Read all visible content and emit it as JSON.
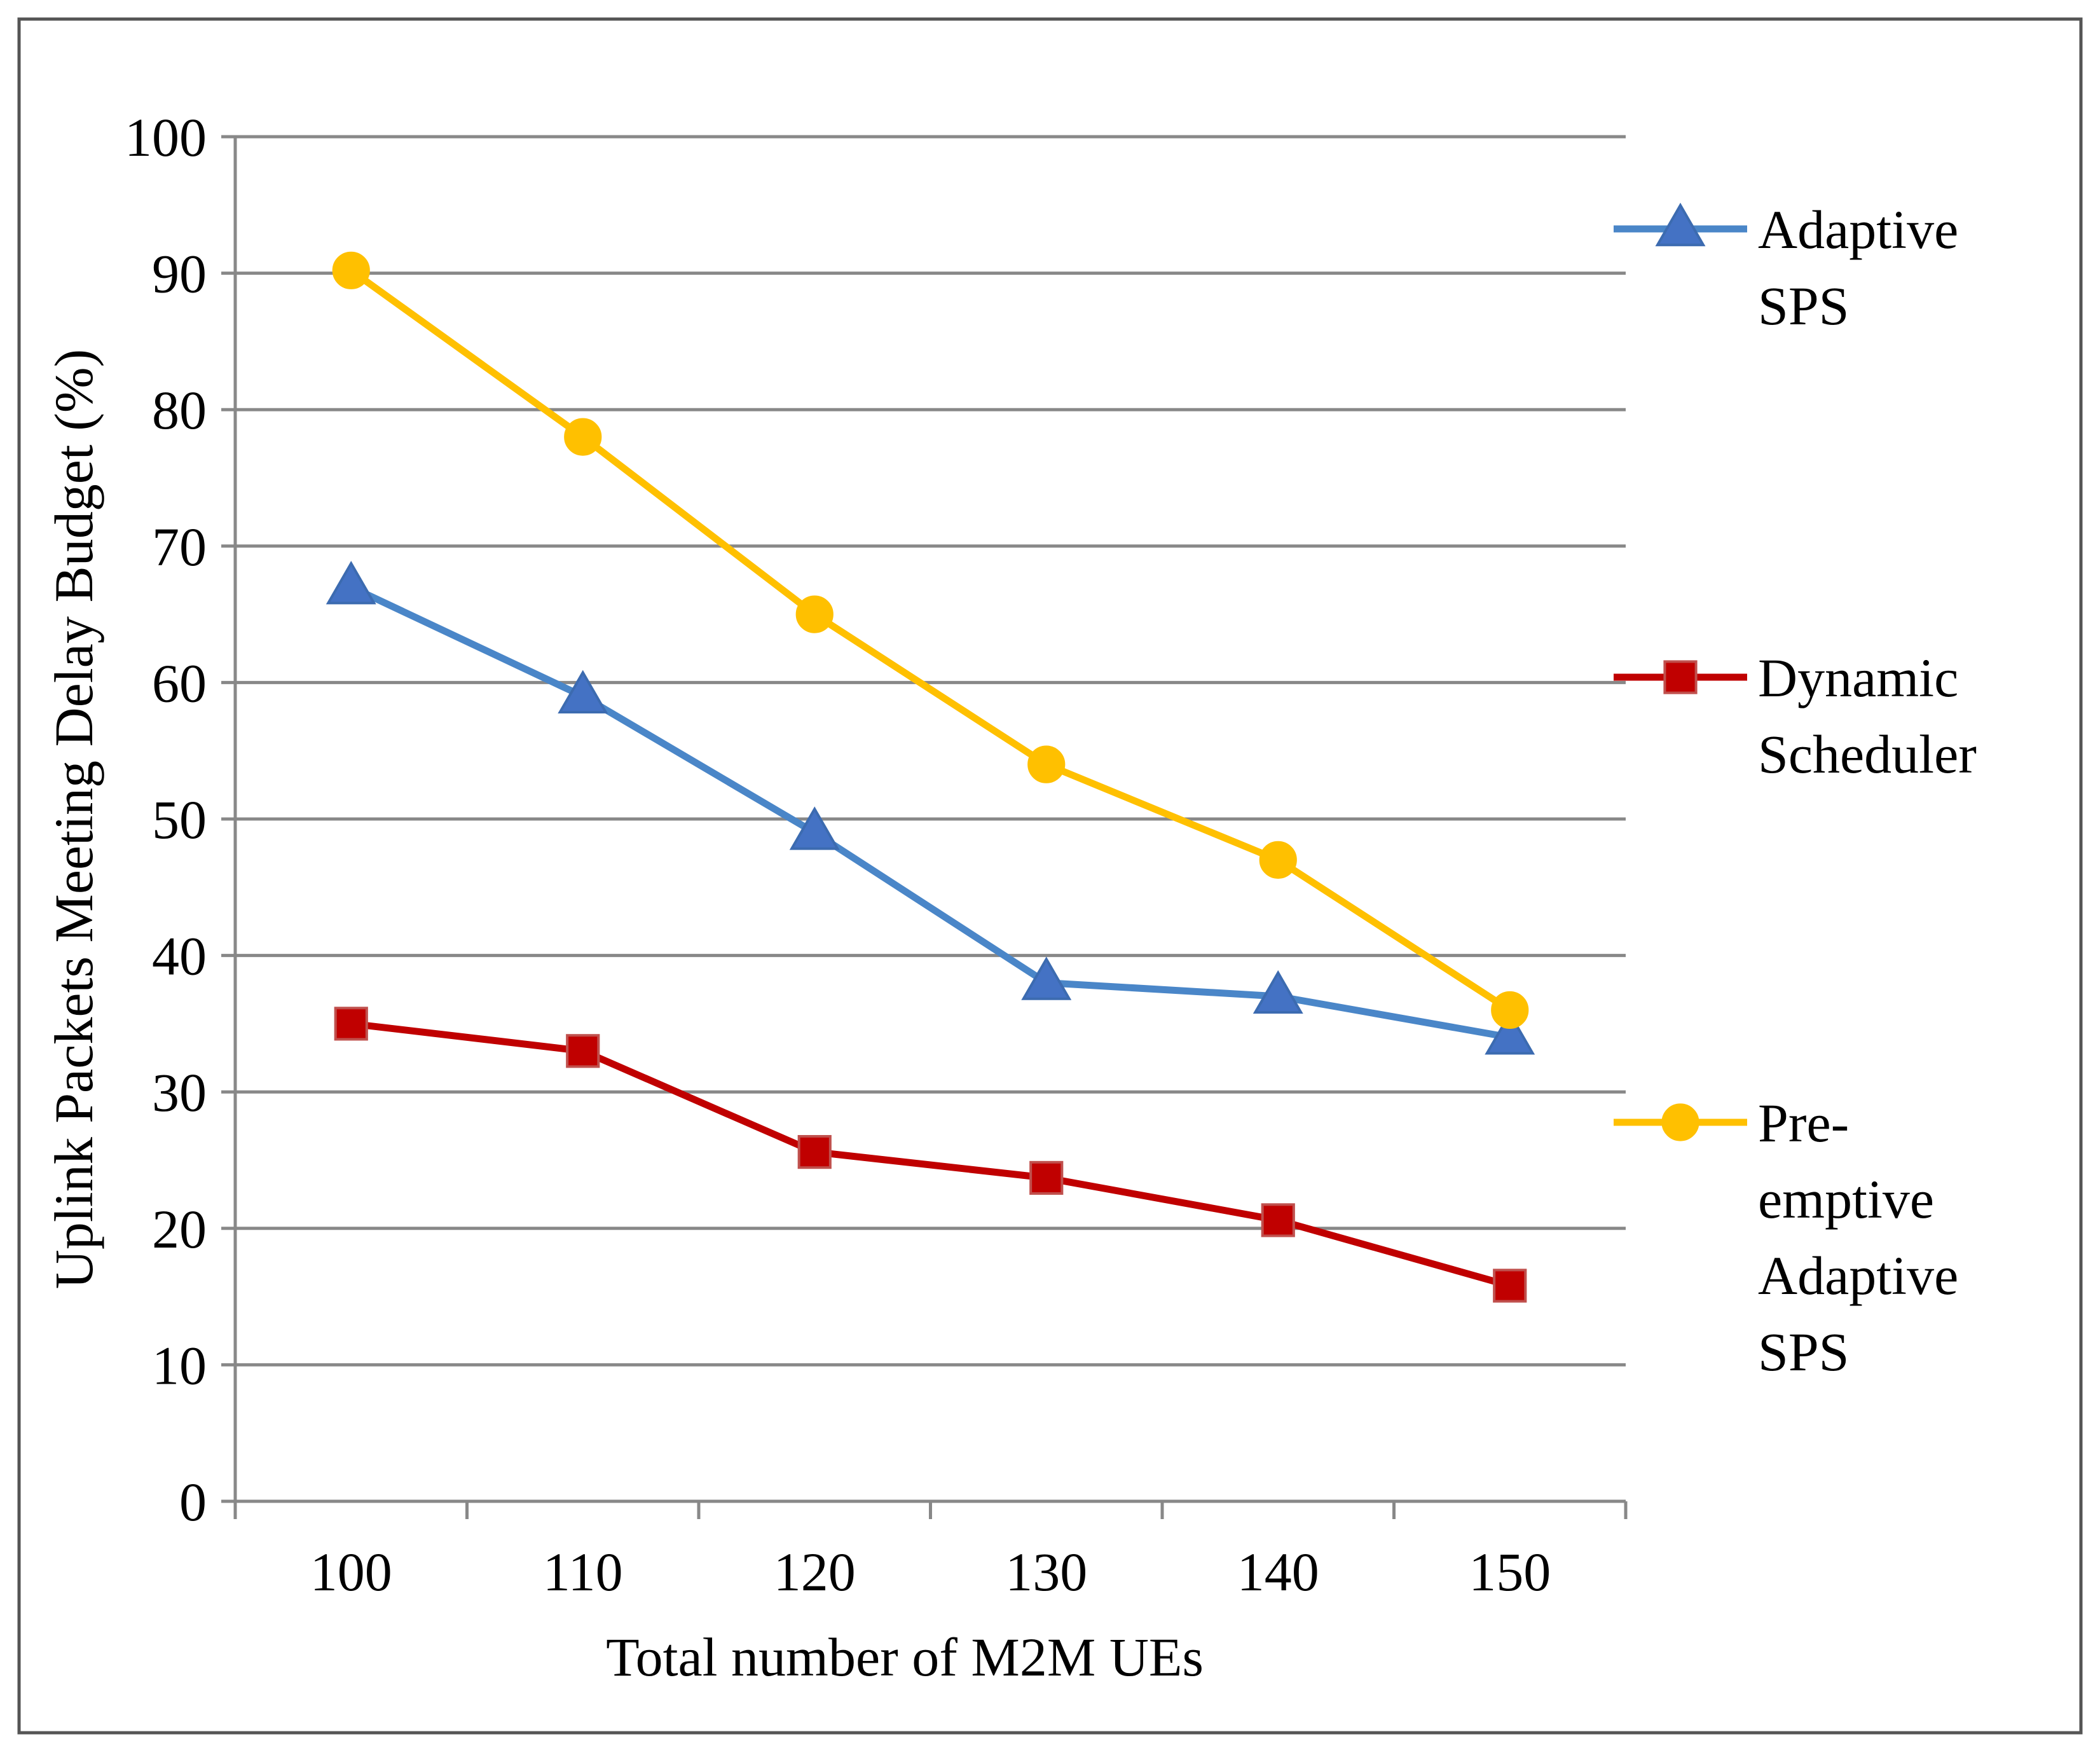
{
  "chart_data": {
    "type": "line",
    "title": "",
    "xlabel": "Total number of M2M UEs",
    "ylabel": "Uplink Packets Meeting Delay Budget (%)",
    "categories": [
      "100",
      "110",
      "120",
      "130",
      "140",
      "150"
    ],
    "x": [
      100,
      110,
      120,
      130,
      140,
      150
    ],
    "ylim": [
      0,
      100
    ],
    "yticks": [
      "0",
      "10",
      "20",
      "30",
      "40",
      "50",
      "60",
      "70",
      "80",
      "90",
      "100"
    ],
    "grid": true,
    "legend_position": "right",
    "series": [
      {
        "name": "Adaptive SPS",
        "legend_lines": [
          "Adaptive",
          "SPS"
        ],
        "marker": "triangle",
        "color": "#4A86C8",
        "marker_color": "#4472C4",
        "values": [
          67,
          59,
          49,
          38,
          37,
          34
        ]
      },
      {
        "name": "Dynamic Scheduler",
        "legend_lines": [
          "Dynamic",
          "Scheduler"
        ],
        "marker": "square",
        "color": "#C00000",
        "marker_color": "#C00000",
        "values": [
          35,
          33,
          25.6,
          23.7,
          20.6,
          15.8
        ]
      },
      {
        "name": "Pre-emptive Adaptive SPS",
        "legend_lines": [
          "Pre-",
          "emptive",
          "Adaptive",
          "SPS"
        ],
        "marker": "circle",
        "color": "#FFC000",
        "marker_color": "#FFC000",
        "values": [
          90.2,
          78,
          65,
          54,
          47,
          36
        ]
      }
    ]
  }
}
